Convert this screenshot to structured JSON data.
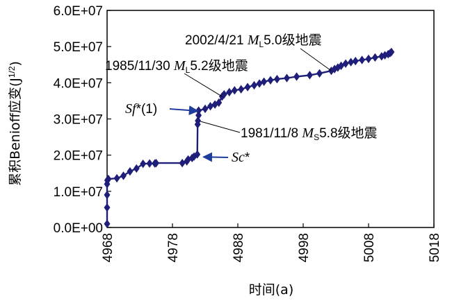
{
  "chart_data": {
    "type": "line",
    "xlabel": "时间(a)",
    "ylabel_prefix": "累积Benioff应变(J",
    "ylabel_exponent": "1/2",
    "ylabel_suffix": ")",
    "xlim": [
      4968,
      5018
    ],
    "ylim": [
      0,
      60000000
    ],
    "xticks": [
      4968,
      4978,
      4988,
      4998,
      5008,
      5018
    ],
    "xtick_labels": [
      "4968",
      "4978",
      "4988",
      "4998",
      "5008",
      "5018"
    ],
    "yticks": [
      0,
      10000000,
      20000000,
      30000000,
      40000000,
      50000000,
      60000000
    ],
    "ytick_labels": [
      "0.0E+00",
      "1.0E+07",
      "2.0E+07",
      "3.0E+07",
      "4.0E+07",
      "5.0E+07",
      "6.0E+07"
    ],
    "series": [
      {
        "name": "累积Benioff应变",
        "color": "#1f1f7a",
        "x": [
          4968.0,
          4968.0,
          4968.0,
          4968.0,
          4968.05,
          4968.1,
          4968.2,
          4969.5,
          4970.5,
          4971.5,
          4972.5,
          4973.5,
          4974.5,
          4975.3,
          4975.5,
          4979.5,
          4980.2,
          4980.4,
          4981.0,
          4981.3,
          4981.8,
          4981.85,
          4981.9,
          4982.0,
          4982.0,
          4983.0,
          4983.8,
          4984.5,
          4985.1,
          4985.6,
          4985.9,
          4986.7,
          4987.5,
          4988.5,
          4989.5,
          4990.5,
          4991.3,
          4992.0,
          4993.0,
          4994.0,
          4995.5,
          4997.0,
          4999.0,
          5000.5,
          5002.3,
          5002.8,
          5003.3,
          5003.8,
          5004.5,
          5005.3,
          5006.0,
          5007.0,
          5008.0,
          5009.0,
          5010.0,
          5010.5,
          5011.0,
          5011.3,
          5011.5
        ],
        "y": [
          1000000,
          5500000,
          9000000,
          12000000,
          13000000,
          13200000,
          13400000,
          13600000,
          14300000,
          15500000,
          16300000,
          17600000,
          17700000,
          17700000,
          17800000,
          17800000,
          18300000,
          18800000,
          19200000,
          19600000,
          20200000,
          28500000,
          29500000,
          31000000,
          32300000,
          32800000,
          33500000,
          34000000,
          34500000,
          36200000,
          36800000,
          37400000,
          37900000,
          38200000,
          38800000,
          39300000,
          39800000,
          40300000,
          40700000,
          41000000,
          41300000,
          41700000,
          42100000,
          42600000,
          43300000,
          43800000,
          44200000,
          44700000,
          45300000,
          45700000,
          46000000,
          46300000,
          46600000,
          47000000,
          47300000,
          47600000,
          47900000,
          48200000,
          48500000
        ]
      }
    ],
    "annotations": [
      {
        "id": "eq2002",
        "date": "2002/4/21 ",
        "mag_symbol": "M",
        "mag_sub": "L",
        "mag_value": "5.0",
        "suffix": "级地震",
        "point_x": 5002.3,
        "point_y": 43300000
      },
      {
        "id": "eq1985",
        "date": "1985/11/30 ",
        "mag_symbol": "M",
        "mag_sub": "L",
        "mag_value": "5.2",
        "suffix": "级地震",
        "point_x": 4985.6,
        "point_y": 36200000
      },
      {
        "id": "eq1981",
        "date": "1981/11/8 ",
        "mag_symbol": "M",
        "mag_sub": "S",
        "mag_value": "5.8",
        "suffix": "级地震",
        "point_x": 4982.0,
        "point_y": 29500000
      },
      {
        "id": "sf",
        "label_main": "Sf",
        "label_rest": "*(1)",
        "arrow_to_x": 4982.3,
        "arrow_to_y": 32300000
      },
      {
        "id": "sc",
        "label_main": "Sc",
        "label_rest": "*",
        "arrow_to_x": 4982.3,
        "arrow_to_y": 19600000
      }
    ]
  }
}
